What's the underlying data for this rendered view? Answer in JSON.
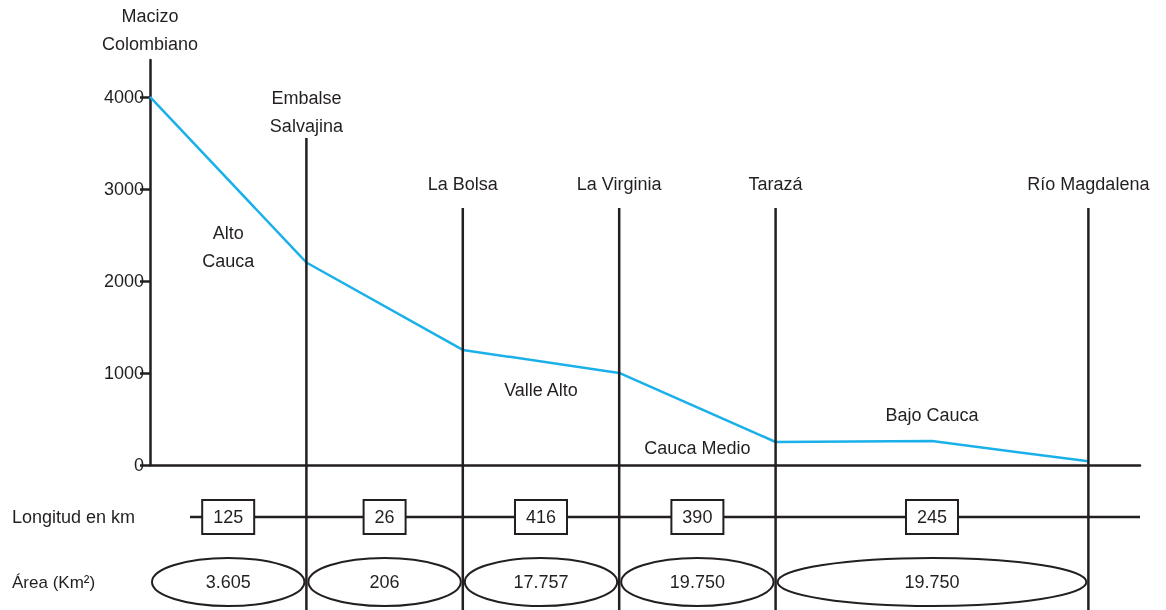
{
  "chart_data": {
    "type": "line",
    "categories": [
      "Macizo Colombiano",
      "Embalse Salvajina",
      "La Bolsa",
      "La Virginia",
      "Tarazá",
      null,
      "Río Magdalena"
    ],
    "series": [
      {
        "color": "#1ab0ea",
        "values": [
          4000,
          2200,
          1250,
          1000,
          250,
          260,
          40
        ]
      }
    ],
    "ylim": [
      0,
      4400
    ],
    "yticks": [
      0,
      1000,
      2000,
      3000,
      4000
    ],
    "ref_lines": [
      {
        "axis": "x",
        "value": "Embalse Salvajina"
      },
      {
        "axis": "x",
        "value": "La Bolsa"
      },
      {
        "axis": "x",
        "value": "La Virginia"
      },
      {
        "axis": "x",
        "value": "Tarazá"
      },
      {
        "axis": "x",
        "value": "Río Magdalena"
      }
    ],
    "annotations": [
      "Alto Cauca",
      "Valle Alto",
      "Cauca Medio",
      "Bajo Cauca",
      "Longitud en km",
      "125",
      "26",
      "416",
      "390",
      "245",
      "Área (Km²)",
      "3.605",
      "206",
      "17.757",
      "19.750",
      "19.750"
    ],
    "marker": "none",
    "line_style": "solid",
    "grid": false
  }
}
